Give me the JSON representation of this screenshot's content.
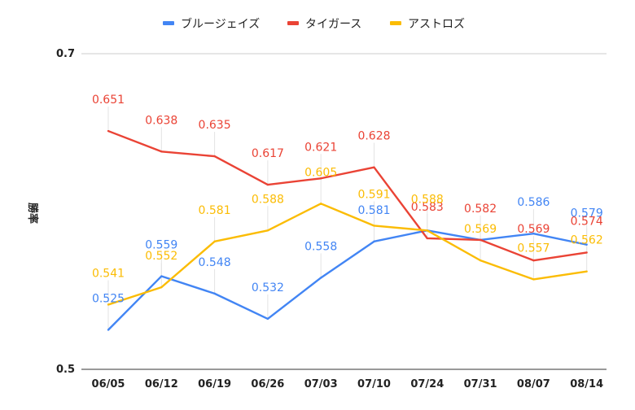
{
  "chart_data": {
    "type": "line",
    "title": "",
    "xlabel": "",
    "ylabel": "勝率",
    "ylim": [
      0.5,
      0.7
    ],
    "yticks": [
      "0.7",
      "0.5"
    ],
    "grid": true,
    "legend_position": "top",
    "categories": [
      "06/05",
      "06/12",
      "06/19",
      "06/26",
      "07/03",
      "07/10",
      "07/24",
      "07/31",
      "08/07",
      "08/14"
    ],
    "series": [
      {
        "name": "ブルージェイズ",
        "color": "#4285f4",
        "values": [
          0.525,
          0.559,
          0.548,
          0.532,
          0.558,
          0.581,
          0.588,
          0.582,
          0.586,
          0.579
        ],
        "labels": [
          "0.525",
          "0.559",
          "0.548",
          "0.532",
          "0.558",
          "0.581",
          "",
          "",
          "0.586",
          "0.579"
        ]
      },
      {
        "name": "タイガース",
        "color": "#ea4335",
        "values": [
          0.651,
          0.638,
          0.635,
          0.617,
          0.621,
          0.628,
          0.583,
          0.582,
          0.569,
          0.574
        ],
        "labels": [
          "0.651",
          "0.638",
          "0.635",
          "0.617",
          "0.621",
          "0.628",
          "0.583",
          "0.582",
          "0.569",
          "0.574"
        ]
      },
      {
        "name": "アストロズ",
        "color": "#fbbc04",
        "values": [
          0.541,
          0.552,
          0.581,
          0.588,
          0.605,
          0.591,
          0.588,
          0.569,
          0.557,
          0.562
        ],
        "labels": [
          "0.541",
          "0.552",
          "0.581",
          "0.588",
          "0.605",
          "0.591",
          "0.588",
          "0.569",
          "0.557",
          "0.562"
        ]
      }
    ]
  }
}
